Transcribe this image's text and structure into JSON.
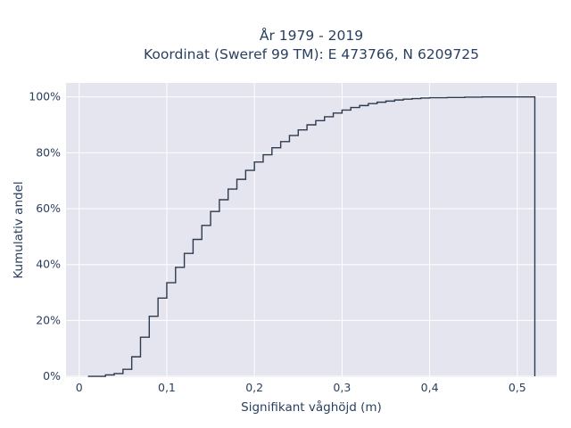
{
  "chart_data": {
    "type": "line",
    "line_shape": "step",
    "title_line1": "År 1979 - 2019",
    "title_line2": "Koordinat (Sweref 99 TM): E 473766, N 6209725",
    "xlabel": "Signifikant våghöjd (m)",
    "ylabel": "Kumulativ andel",
    "xlim": [
      -0.015,
      0.545
    ],
    "ylim": [
      -0.003,
      1.05
    ],
    "x_ticks": [
      0,
      0.1,
      0.2,
      0.3,
      0.4,
      0.5
    ],
    "x_tick_labels": [
      "0",
      "0,1",
      "0,2",
      "0,3",
      "0,4",
      "0,5"
    ],
    "y_ticks": [
      0,
      0.2,
      0.4,
      0.6,
      0.8,
      1.0
    ],
    "y_tick_labels": [
      "0%",
      "20%",
      "40%",
      "60%",
      "80%",
      "100%"
    ],
    "grid": true,
    "background": "#e5e5f0",
    "line_color": "#2e3a4e",
    "series": [
      {
        "x": [
          0.01,
          0.03,
          0.04,
          0.05,
          0.06,
          0.07,
          0.08,
          0.09,
          0.1,
          0.11,
          0.12,
          0.13,
          0.14,
          0.15,
          0.16,
          0.17,
          0.18,
          0.19,
          0.2,
          0.21,
          0.22,
          0.23,
          0.24,
          0.25,
          0.26,
          0.27,
          0.28,
          0.29,
          0.3,
          0.31,
          0.32,
          0.33,
          0.34,
          0.35,
          0.36,
          0.37,
          0.38,
          0.39,
          0.4,
          0.42,
          0.44,
          0.46,
          0.52
        ],
        "y": [
          0.0,
          0.005,
          0.01,
          0.025,
          0.07,
          0.14,
          0.215,
          0.28,
          0.335,
          0.39,
          0.44,
          0.49,
          0.54,
          0.59,
          0.632,
          0.67,
          0.705,
          0.737,
          0.767,
          0.793,
          0.818,
          0.84,
          0.862,
          0.882,
          0.9,
          0.915,
          0.929,
          0.942,
          0.953,
          0.962,
          0.969,
          0.976,
          0.981,
          0.985,
          0.989,
          0.992,
          0.994,
          0.996,
          0.997,
          0.998,
          0.999,
          1.0,
          1.0
        ]
      }
    ]
  }
}
